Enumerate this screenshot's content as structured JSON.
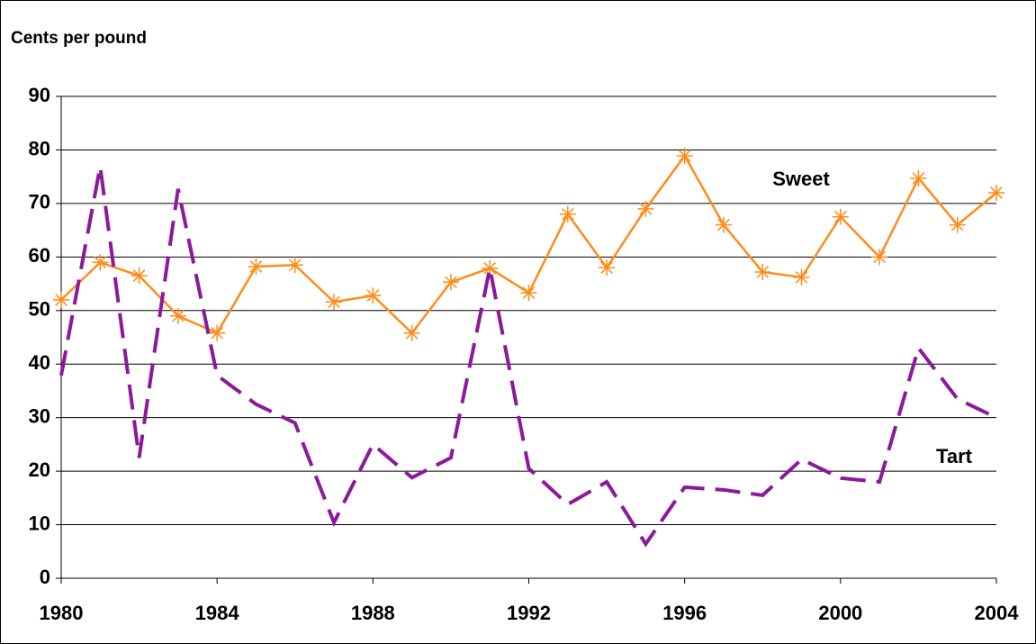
{
  "chart_data": {
    "type": "line",
    "y_axis_label": "Cents per pound",
    "x": [
      1980,
      1981,
      1982,
      1983,
      1984,
      1985,
      1986,
      1987,
      1988,
      1989,
      1990,
      1991,
      1992,
      1993,
      1994,
      1995,
      1996,
      1997,
      1998,
      1999,
      2000,
      2001,
      2002,
      2003,
      2004
    ],
    "xlim": [
      1980,
      2004
    ],
    "xticks": [
      1980,
      1984,
      1988,
      1992,
      1996,
      2000,
      2004
    ],
    "ylim": [
      0,
      90
    ],
    "yticks": [
      0,
      10,
      20,
      30,
      40,
      50,
      60,
      70,
      80,
      90
    ],
    "grid": true,
    "series": [
      {
        "name": "Sweet",
        "color": "#ff8c1a",
        "dash": false,
        "marker": "asterisk",
        "values": [
          52,
          59,
          56.5,
          49,
          45.8,
          58.2,
          58.5,
          51.6,
          52.8,
          45.8,
          55.3,
          57.9,
          53.3,
          68,
          58,
          69,
          78.9,
          66,
          57.2,
          56.2,
          67.5,
          60,
          74.7,
          66,
          72
        ]
      },
      {
        "name": "Tart",
        "color": "#8b1a9a",
        "dash": true,
        "marker": null,
        "values": [
          37.9,
          76.9,
          22.5,
          72.7,
          37.9,
          32.5,
          29,
          10.4,
          25,
          18.8,
          22.5,
          57.9,
          20.5,
          13.8,
          18,
          6.4,
          17,
          16.5,
          15.5,
          22.2,
          18.7,
          18,
          43,
          33.5,
          30
        ]
      }
    ]
  }
}
